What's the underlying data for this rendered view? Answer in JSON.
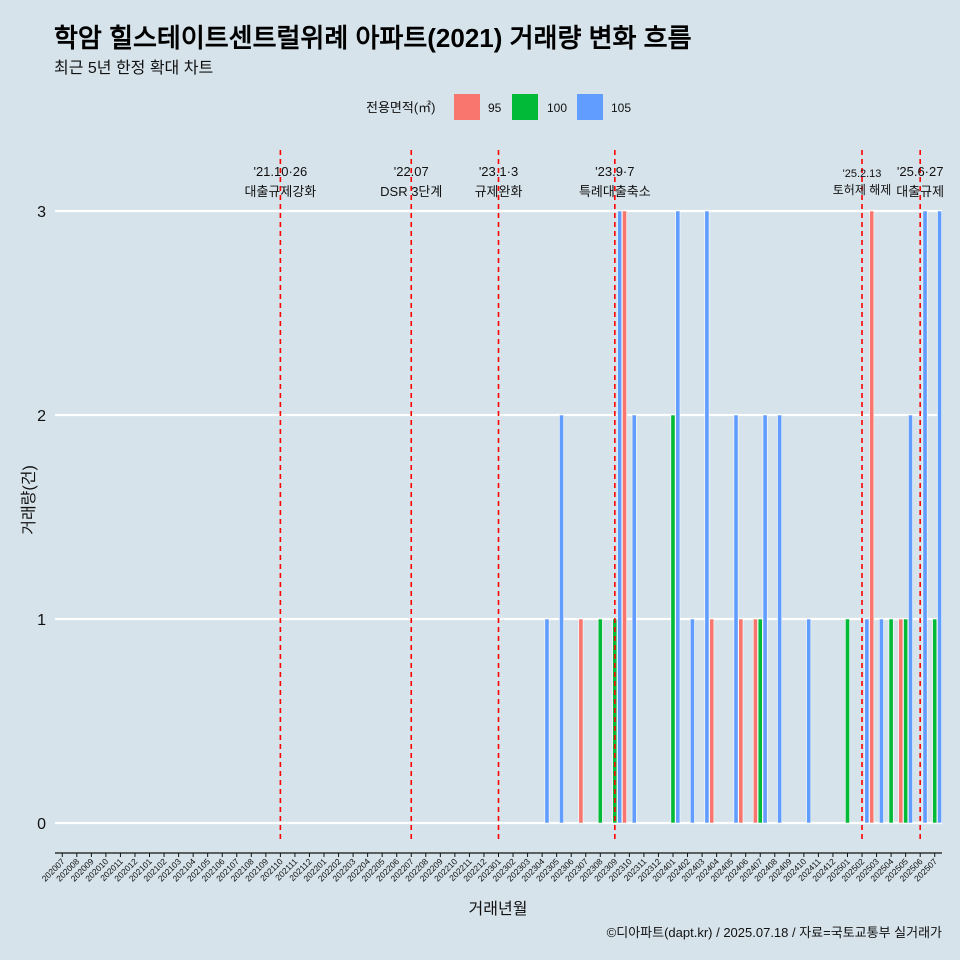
{
  "title": "학암 힐스테이트센트럴위례 아파트(2021) 거래량 변화 흐름",
  "subtitle": "최근 5년 한정 확대 차트",
  "caption": "©디아파트(dapt.kr) / 2025.07.18 / 자료=국토교통부 실거래가",
  "colors": {
    "95": "#f8766d",
    "100": "#00ba38",
    "105": "#619cff",
    "event_line": "#ff0000",
    "grid": "#ffffff",
    "background": "#d6e3ea"
  },
  "chart_data": {
    "type": "bar",
    "xlabel": "거래년월",
    "ylabel": "거래량(건)",
    "ylim": [
      0,
      3
    ],
    "y_ticks": [
      0,
      1,
      2,
      3
    ],
    "legend": {
      "title": "전용면적(㎡)",
      "position": "top",
      "entries": [
        "95",
        "100",
        "105"
      ]
    },
    "categories": [
      "202007",
      "202008",
      "202009",
      "202010",
      "202011",
      "202012",
      "202101",
      "202102",
      "202103",
      "202104",
      "202105",
      "202106",
      "202107",
      "202108",
      "202109",
      "202110",
      "202111",
      "202112",
      "202201",
      "202202",
      "202203",
      "202204",
      "202205",
      "202206",
      "202207",
      "202208",
      "202209",
      "202210",
      "202211",
      "202212",
      "202301",
      "202302",
      "202303",
      "202304",
      "202305",
      "202306",
      "202307",
      "202308",
      "202309",
      "202310",
      "202311",
      "202312",
      "202401",
      "202402",
      "202403",
      "202404",
      "202405",
      "202406",
      "202407",
      "202408",
      "202409",
      "202410",
      "202411",
      "202412",
      "202501",
      "202502",
      "202503",
      "202504",
      "202505",
      "202506",
      "202507"
    ],
    "series": [
      {
        "name": "95",
        "values": [
          0,
          0,
          0,
          0,
          0,
          0,
          0,
          0,
          0,
          0,
          0,
          0,
          0,
          0,
          0,
          0,
          0,
          0,
          0,
          0,
          0,
          0,
          0,
          0,
          0,
          0,
          0,
          0,
          0,
          0,
          0,
          0,
          0,
          0,
          0,
          0,
          1,
          0,
          0,
          3,
          0,
          0,
          0,
          0,
          0,
          1,
          0,
          1,
          1,
          0,
          0,
          0,
          0,
          0,
          0,
          0,
          3,
          0,
          1,
          0,
          0
        ]
      },
      {
        "name": "100",
        "values": [
          0,
          0,
          0,
          0,
          0,
          0,
          0,
          0,
          0,
          0,
          0,
          0,
          0,
          0,
          0,
          0,
          0,
          0,
          0,
          0,
          0,
          0,
          0,
          0,
          0,
          0,
          0,
          0,
          0,
          0,
          0,
          0,
          0,
          0,
          0,
          0,
          0,
          1,
          1,
          0,
          0,
          0,
          2,
          0,
          0,
          0,
          0,
          0,
          1,
          0,
          0,
          0,
          0,
          0,
          1,
          0,
          0,
          1,
          1,
          0,
          1
        ]
      },
      {
        "name": "105",
        "values": [
          0,
          0,
          0,
          0,
          0,
          0,
          0,
          0,
          0,
          0,
          0,
          0,
          0,
          0,
          0,
          0,
          0,
          0,
          0,
          0,
          0,
          0,
          0,
          0,
          0,
          0,
          0,
          0,
          0,
          0,
          0,
          0,
          0,
          1,
          2,
          0,
          0,
          0,
          3,
          2,
          0,
          0,
          3,
          1,
          3,
          0,
          2,
          0,
          2,
          2,
          0,
          1,
          0,
          0,
          0,
          1,
          1,
          0,
          2,
          3,
          3
        ]
      }
    ],
    "events": [
      {
        "date": "'21.10·26",
        "label": "대출규제강화",
        "category": "202110"
      },
      {
        "date": "'22.07",
        "label": "DSR 3단계",
        "category": "202207"
      },
      {
        "date": "'23.1·3",
        "label": "규제완화",
        "category": "202301"
      },
      {
        "date": "'23.9·7",
        "label": "특례대출축소",
        "category": "202309"
      },
      {
        "date": "'25.2.13",
        "label": "토허제 해제",
        "category": "202502"
      },
      {
        "date": "'25.6·27",
        "label": "대출규제",
        "category": "202506"
      }
    ]
  }
}
